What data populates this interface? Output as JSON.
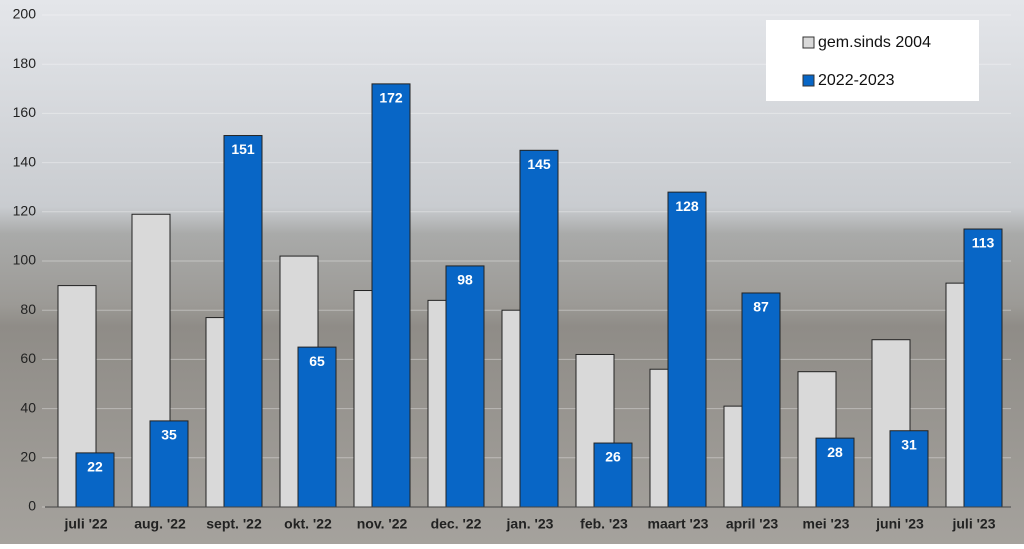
{
  "chart_data": {
    "type": "bar",
    "categories": [
      "juli '22",
      "aug. '22",
      "sept. '22",
      "okt. '22",
      "nov. '22",
      "dec. '22",
      "jan. '23",
      "feb. '23",
      "maart '23",
      "april '23",
      "mei '23",
      "juni '23",
      "juli '23"
    ],
    "series": [
      {
        "name": "gem.sinds 2004",
        "color": "#d9d9d9",
        "values": [
          90,
          119,
          77,
          102,
          88,
          84,
          80,
          62,
          56,
          41,
          55,
          68,
          91
        ]
      },
      {
        "name": "2022-2023",
        "color": "#0866c6",
        "values": [
          22,
          35,
          151,
          65,
          172,
          98,
          145,
          26,
          128,
          87,
          28,
          31,
          113
        ]
      }
    ],
    "ylim": [
      0,
      200
    ],
    "yticks": [
      0,
      20,
      40,
      60,
      80,
      100,
      120,
      140,
      160,
      180,
      200
    ],
    "grid": true,
    "legend": "top-right"
  }
}
